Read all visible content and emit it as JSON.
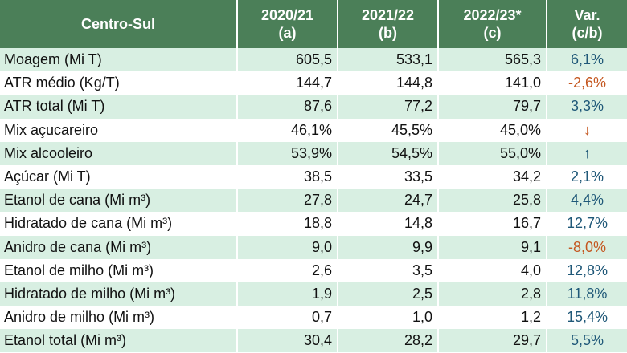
{
  "table": {
    "header": [
      [
        "Centro-Sul"
      ],
      [
        "2020/21",
        "(a)"
      ],
      [
        "2021/22",
        "(b)"
      ],
      [
        "2022/23*",
        "(c)"
      ],
      [
        "Var.",
        "(c/b)"
      ]
    ],
    "rows": [
      [
        "Moagem (Mi T)",
        "605,5",
        "533,1",
        "565,3",
        "6,1%"
      ],
      [
        "ATR médio (Kg/T)",
        "144,7",
        "144,8",
        "141,0",
        "-2,6%"
      ],
      [
        "ATR total (Mi T)",
        "87,6",
        "77,2",
        "79,7",
        "3,3%"
      ],
      [
        "Mix açucareiro",
        "46,1%",
        "45,5%",
        "45,0%",
        "↓"
      ],
      [
        "Mix alcooleiro",
        "53,9%",
        "54,5%",
        "55,0%",
        "↑"
      ],
      [
        "Açúcar (Mi T)",
        "38,5",
        "33,5",
        "34,2",
        "2,1%"
      ],
      [
        "Etanol de cana (Mi m³)",
        "27,8",
        "24,7",
        "25,8",
        "4,4%"
      ],
      [
        "Hidratado de cana (Mi m³)",
        "18,8",
        "14,8",
        "16,7",
        "12,7%"
      ],
      [
        "Anidro de cana (Mi m³)",
        "9,0",
        "9,9",
        "9,1",
        "-8,0%"
      ],
      [
        "Etanol de milho (Mi m³)",
        "2,6",
        "3,5",
        "4,0",
        "12,8%"
      ],
      [
        "Hidratado de milho (Mi m³)",
        "1,9",
        "2,5",
        "2,8",
        "11,8%"
      ],
      [
        "Anidro de milho (Mi m³)",
        "0,7",
        "1,0",
        "1,2",
        "15,4%"
      ],
      [
        "Etanol total (Mi m³)",
        "30,4",
        "28,2",
        "29,7",
        "5,5%"
      ]
    ],
    "colors": {
      "header": "#4b7f58",
      "band": "#d8efe2",
      "up": "#1f5878",
      "down": "#c4561f"
    }
  }
}
